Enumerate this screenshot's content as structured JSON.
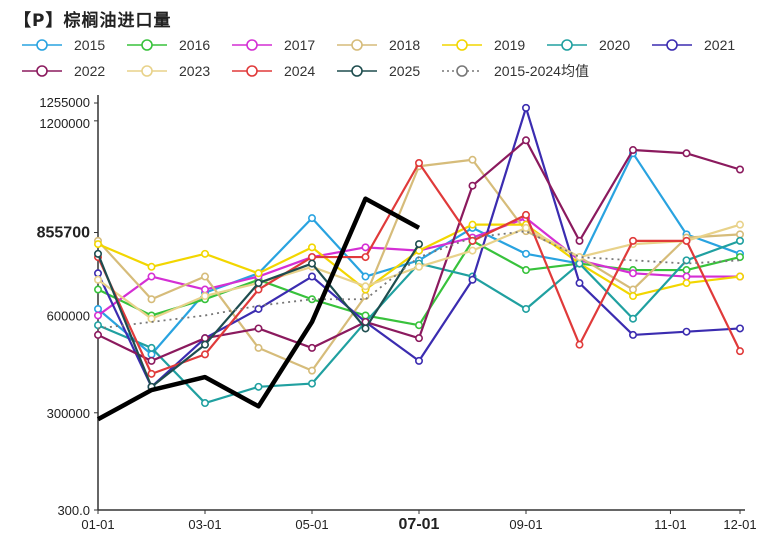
{
  "title": "【P】棕榈油进口量",
  "chart_data": {
    "type": "line",
    "title": "【P】棕榈油进口量",
    "xlabel": "",
    "ylabel": "",
    "x_ticks": [
      "01-01",
      "03-01",
      "05-01",
      "07-01",
      "09-01",
      "11-01",
      "12-01"
    ],
    "highlight_x_tick": "07-01",
    "y_ticks": [
      "300.0",
      "300000",
      "600000",
      "855700",
      "1200000",
      "1255000"
    ],
    "highlight_y_tick": "855700",
    "ylim": [
      300,
      1255000
    ],
    "grid": false,
    "legend_position": "top",
    "series": [
      {
        "name": "2015",
        "color": "#29a3e0",
        "values": [
          620000,
          480000,
          670000,
          730000,
          900000,
          720000,
          770000,
          870000,
          790000,
          760000,
          1100000,
          850000,
          790000
        ]
      },
      {
        "name": "2016",
        "color": "#38c23c",
        "values": [
          680000,
          600000,
          650000,
          710000,
          650000,
          600000,
          570000,
          830000,
          740000,
          760000,
          740000,
          740000,
          780000
        ]
      },
      {
        "name": "2017",
        "color": "#d42fd4",
        "values": [
          600000,
          720000,
          680000,
          720000,
          780000,
          810000,
          800000,
          840000,
          900000,
          770000,
          730000,
          720000,
          720000
        ]
      },
      {
        "name": "2018",
        "color": "#d6bc7a",
        "values": [
          830000,
          650000,
          720000,
          500000,
          430000,
          660000,
          1060000,
          1080000,
          860000,
          780000,
          680000,
          840000,
          850000
        ]
      },
      {
        "name": "2019",
        "color": "#f2d600",
        "values": [
          820000,
          750000,
          790000,
          730000,
          810000,
          680000,
          800000,
          880000,
          880000,
          760000,
          660000,
          700000,
          720000
        ]
      },
      {
        "name": "2020",
        "color": "#20a0a0",
        "values": [
          570000,
          500000,
          330000,
          380000,
          390000,
          580000,
          760000,
          720000,
          620000,
          760000,
          590000,
          770000,
          830000
        ]
      },
      {
        "name": "2021",
        "color": "#3b2cb0",
        "values": [
          730000,
          380000,
          530000,
          620000,
          720000,
          580000,
          460000,
          710000,
          1240000,
          700000,
          540000,
          550000,
          560000
        ]
      },
      {
        "name": "2022",
        "color": "#8b1a5e",
        "values": [
          540000,
          460000,
          530000,
          560000,
          500000,
          580000,
          530000,
          1000000,
          1140000,
          830000,
          1110000,
          1100000,
          1050000
        ]
      },
      {
        "name": "2023",
        "color": "#e8d28a",
        "values": [
          710000,
          590000,
          660000,
          700000,
          750000,
          690000,
          750000,
          800000,
          870000,
          780000,
          820000,
          830000,
          880000
        ]
      },
      {
        "name": "2024",
        "color": "#e03a3a",
        "values": [
          780000,
          420000,
          480000,
          680000,
          780000,
          780000,
          1070000,
          830000,
          910000,
          510000,
          830000,
          830000,
          490000
        ]
      },
      {
        "name": "2025",
        "color": "#1e4d4f",
        "values": [
          790000,
          380000,
          510000,
          700000,
          760000,
          560000,
          820000
        ]
      },
      {
        "name": "2015-2024均值",
        "color": "#777777",
        "dotted": true,
        "values": [
          560000,
          580000,
          600000,
          630000,
          650000,
          650000,
          780000,
          840000,
          860000,
          780000,
          770000,
          760000,
          770000
        ]
      },
      {
        "name": "",
        "color": "#000000",
        "bold": true,
        "values": [
          280000,
          370000,
          410000,
          320000,
          580000,
          960000,
          870000
        ]
      }
    ]
  }
}
